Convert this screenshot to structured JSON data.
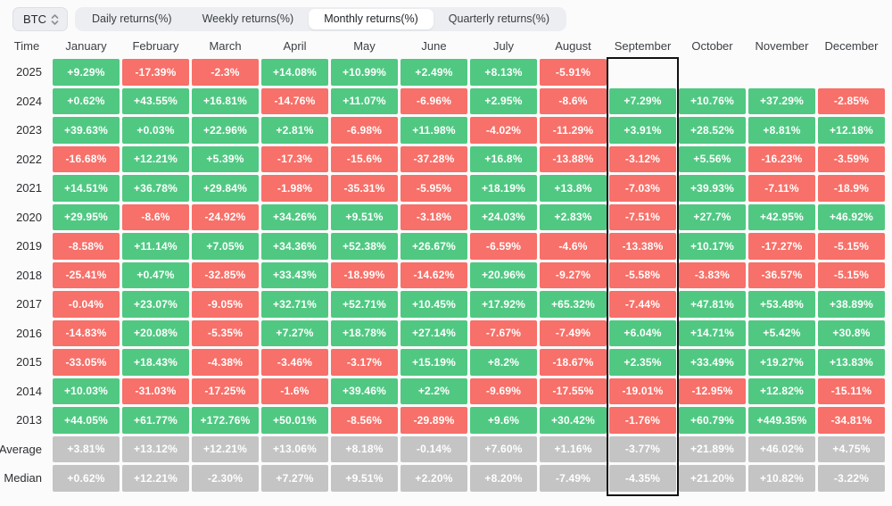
{
  "toolbar": {
    "coin_selector": {
      "label": "BTC",
      "icon": "updown-chevron-icon"
    },
    "tabs": [
      {
        "label": "Daily returns(%)",
        "active": false
      },
      {
        "label": "Weekly returns(%)",
        "active": false
      },
      {
        "label": "Monthly returns(%)",
        "active": true
      },
      {
        "label": "Quarterly returns(%)",
        "active": false
      }
    ]
  },
  "colors": {
    "page_bg": "#fbfbfc",
    "positive": "#50c882",
    "negative": "#f77069",
    "neutral": "#c4c4c4",
    "highlight_border": "#111111"
  },
  "chart_data": {
    "type": "heatmap",
    "title": "BTC Monthly returns(%)",
    "time_header": "Time",
    "columns": [
      "January",
      "February",
      "March",
      "April",
      "May",
      "June",
      "July",
      "August",
      "September",
      "October",
      "November",
      "December"
    ],
    "highlighted_column": "September",
    "legend_rule": "positive values green, negative values red, Average/Median rows gray, missing months blank",
    "rows": [
      {
        "label": "2025",
        "type": "year",
        "values": [
          "+9.29%",
          "-17.39%",
          "-2.3%",
          "+14.08%",
          "+10.99%",
          "+2.49%",
          "+8.13%",
          "-5.91%",
          null,
          null,
          null,
          null
        ]
      },
      {
        "label": "2024",
        "type": "year",
        "values": [
          "+0.62%",
          "+43.55%",
          "+16.81%",
          "-14.76%",
          "+11.07%",
          "-6.96%",
          "+2.95%",
          "-8.6%",
          "+7.29%",
          "+10.76%",
          "+37.29%",
          "-2.85%"
        ]
      },
      {
        "label": "2023",
        "type": "year",
        "values": [
          "+39.63%",
          "+0.03%",
          "+22.96%",
          "+2.81%",
          "-6.98%",
          "+11.98%",
          "-4.02%",
          "-11.29%",
          "+3.91%",
          "+28.52%",
          "+8.81%",
          "+12.18%"
        ]
      },
      {
        "label": "2022",
        "type": "year",
        "values": [
          "-16.68%",
          "+12.21%",
          "+5.39%",
          "-17.3%",
          "-15.6%",
          "-37.28%",
          "+16.8%",
          "-13.88%",
          "-3.12%",
          "+5.56%",
          "-16.23%",
          "-3.59%"
        ]
      },
      {
        "label": "2021",
        "type": "year",
        "values": [
          "+14.51%",
          "+36.78%",
          "+29.84%",
          "-1.98%",
          "-35.31%",
          "-5.95%",
          "+18.19%",
          "+13.8%",
          "-7.03%",
          "+39.93%",
          "-7.11%",
          "-18.9%"
        ]
      },
      {
        "label": "2020",
        "type": "year",
        "values": [
          "+29.95%",
          "-8.6%",
          "-24.92%",
          "+34.26%",
          "+9.51%",
          "-3.18%",
          "+24.03%",
          "+2.83%",
          "-7.51%",
          "+27.7%",
          "+42.95%",
          "+46.92%"
        ]
      },
      {
        "label": "2019",
        "type": "year",
        "values": [
          "-8.58%",
          "+11.14%",
          "+7.05%",
          "+34.36%",
          "+52.38%",
          "+26.67%",
          "-6.59%",
          "-4.6%",
          "-13.38%",
          "+10.17%",
          "-17.27%",
          "-5.15%"
        ]
      },
      {
        "label": "2018",
        "type": "year",
        "values": [
          "-25.41%",
          "+0.47%",
          "-32.85%",
          "+33.43%",
          "-18.99%",
          "-14.62%",
          "+20.96%",
          "-9.27%",
          "-5.58%",
          "-3.83%",
          "-36.57%",
          "-5.15%"
        ]
      },
      {
        "label": "2017",
        "type": "year",
        "values": [
          "-0.04%",
          "+23.07%",
          "-9.05%",
          "+32.71%",
          "+52.71%",
          "+10.45%",
          "+17.92%",
          "+65.32%",
          "-7.44%",
          "+47.81%",
          "+53.48%",
          "+38.89%"
        ]
      },
      {
        "label": "2016",
        "type": "year",
        "values": [
          "-14.83%",
          "+20.08%",
          "-5.35%",
          "+7.27%",
          "+18.78%",
          "+27.14%",
          "-7.67%",
          "-7.49%",
          "+6.04%",
          "+14.71%",
          "+5.42%",
          "+30.8%"
        ]
      },
      {
        "label": "2015",
        "type": "year",
        "values": [
          "-33.05%",
          "+18.43%",
          "-4.38%",
          "-3.46%",
          "-3.17%",
          "+15.19%",
          "+8.2%",
          "-18.67%",
          "+2.35%",
          "+33.49%",
          "+19.27%",
          "+13.83%"
        ]
      },
      {
        "label": "2014",
        "type": "year",
        "values": [
          "+10.03%",
          "-31.03%",
          "-17.25%",
          "-1.6%",
          "+39.46%",
          "+2.2%",
          "-9.69%",
          "-17.55%",
          "-19.01%",
          "-12.95%",
          "+12.82%",
          "-15.11%"
        ]
      },
      {
        "label": "2013",
        "type": "year",
        "values": [
          "+44.05%",
          "+61.77%",
          "+172.76%",
          "+50.01%",
          "-8.56%",
          "-29.89%",
          "+9.6%",
          "+30.42%",
          "-1.76%",
          "+60.79%",
          "+449.35%",
          "-34.81%"
        ]
      },
      {
        "label": "Average",
        "type": "summary",
        "values": [
          "+3.81%",
          "+13.12%",
          "+12.21%",
          "+13.06%",
          "+8.18%",
          "-0.14%",
          "+7.60%",
          "+1.16%",
          "-3.77%",
          "+21.89%",
          "+46.02%",
          "+4.75%"
        ]
      },
      {
        "label": "Median",
        "type": "summary",
        "values": [
          "+0.62%",
          "+12.21%",
          "-2.30%",
          "+7.27%",
          "+9.51%",
          "+2.20%",
          "+8.20%",
          "-7.49%",
          "-4.35%",
          "+21.20%",
          "+10.82%",
          "-3.22%"
        ]
      }
    ]
  }
}
